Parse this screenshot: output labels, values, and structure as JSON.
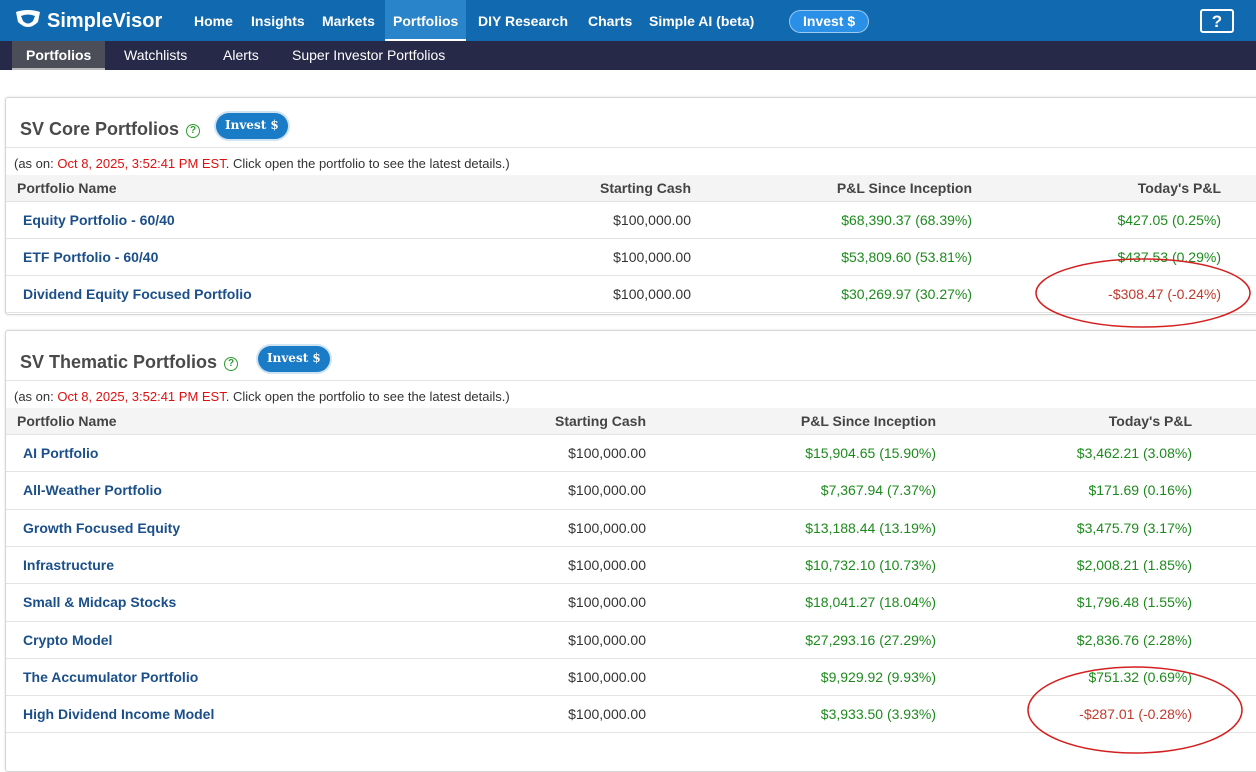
{
  "nav": {
    "brand": "SimpleVisor",
    "items": [
      "Home",
      "Insights",
      "Markets",
      "Portfolios",
      "DIY Research",
      "Charts",
      "Simple AI (beta)"
    ],
    "invest": "Invest $",
    "help": "?"
  },
  "subnav": {
    "items": [
      "Portfolios",
      "Watchlists",
      "Alerts",
      "Super Investor Portfolios"
    ]
  },
  "sections": [
    {
      "title": "SV Core Portfolios",
      "help": "?",
      "invest": "Invest $",
      "note": {
        "prefix": "(as on: ",
        "date": "Oct 8, 2025, 3:52:41 PM EST",
        "suffix": ". Click open the portfolio to see the latest details.)"
      },
      "columns": [
        "Portfolio Name",
        "Starting Cash",
        "P&L Since Inception",
        "Today's P&L"
      ],
      "rows": [
        [
          "Equity Portfolio - 60/40",
          "$100,000.00",
          "$68,390.37 (68.39%)",
          "$427.05 (0.25%)"
        ],
        [
          "ETF Portfolio - 60/40",
          "$100,000.00",
          "$53,809.60 (53.81%)",
          "$437.53 (0.29%)"
        ],
        [
          "Dividend Equity Focused Portfolio",
          "$100,000.00",
          "$30,269.97 (30.27%)",
          "-$308.47 (-0.24%)"
        ]
      ]
    },
    {
      "title": "SV Thematic Portfolios",
      "help": "?",
      "invest": "Invest $",
      "note": {
        "prefix": "(as on: ",
        "date": "Oct 8, 2025, 3:52:41 PM EST",
        "suffix": ". Click open the portfolio to see the latest details.)"
      },
      "columns": [
        "Portfolio Name",
        "Starting Cash",
        "P&L Since Inception",
        "Today's P&L"
      ],
      "rows": [
        [
          "AI Portfolio",
          "$100,000.00",
          "$15,904.65 (15.90%)",
          "$3,462.21 (3.08%)"
        ],
        [
          "All-Weather Portfolio",
          "$100,000.00",
          "$7,367.94 (7.37%)",
          "$171.69 (0.16%)"
        ],
        [
          "Growth Focused Equity",
          "$100,000.00",
          "$13,188.44 (13.19%)",
          "$3,475.79 (3.17%)"
        ],
        [
          "Infrastructure",
          "$100,000.00",
          "$10,732.10 (10.73%)",
          "$2,008.21 (1.85%)"
        ],
        [
          "Small & Midcap Stocks",
          "$100,000.00",
          "$18,041.27 (18.04%)",
          "$1,796.48 (1.55%)"
        ],
        [
          "Crypto Model",
          "$100,000.00",
          "$27,293.16 (27.29%)",
          "$2,836.76 (2.28%)"
        ],
        [
          "The Accumulator Portfolio",
          "$100,000.00",
          "$9,929.92 (9.93%)",
          "$751.32 (0.69%)"
        ],
        [
          "High Dividend Income Model",
          "$100,000.00",
          "$3,933.50 (3.93%)",
          "-$287.01 (-0.28%)"
        ]
      ]
    }
  ]
}
